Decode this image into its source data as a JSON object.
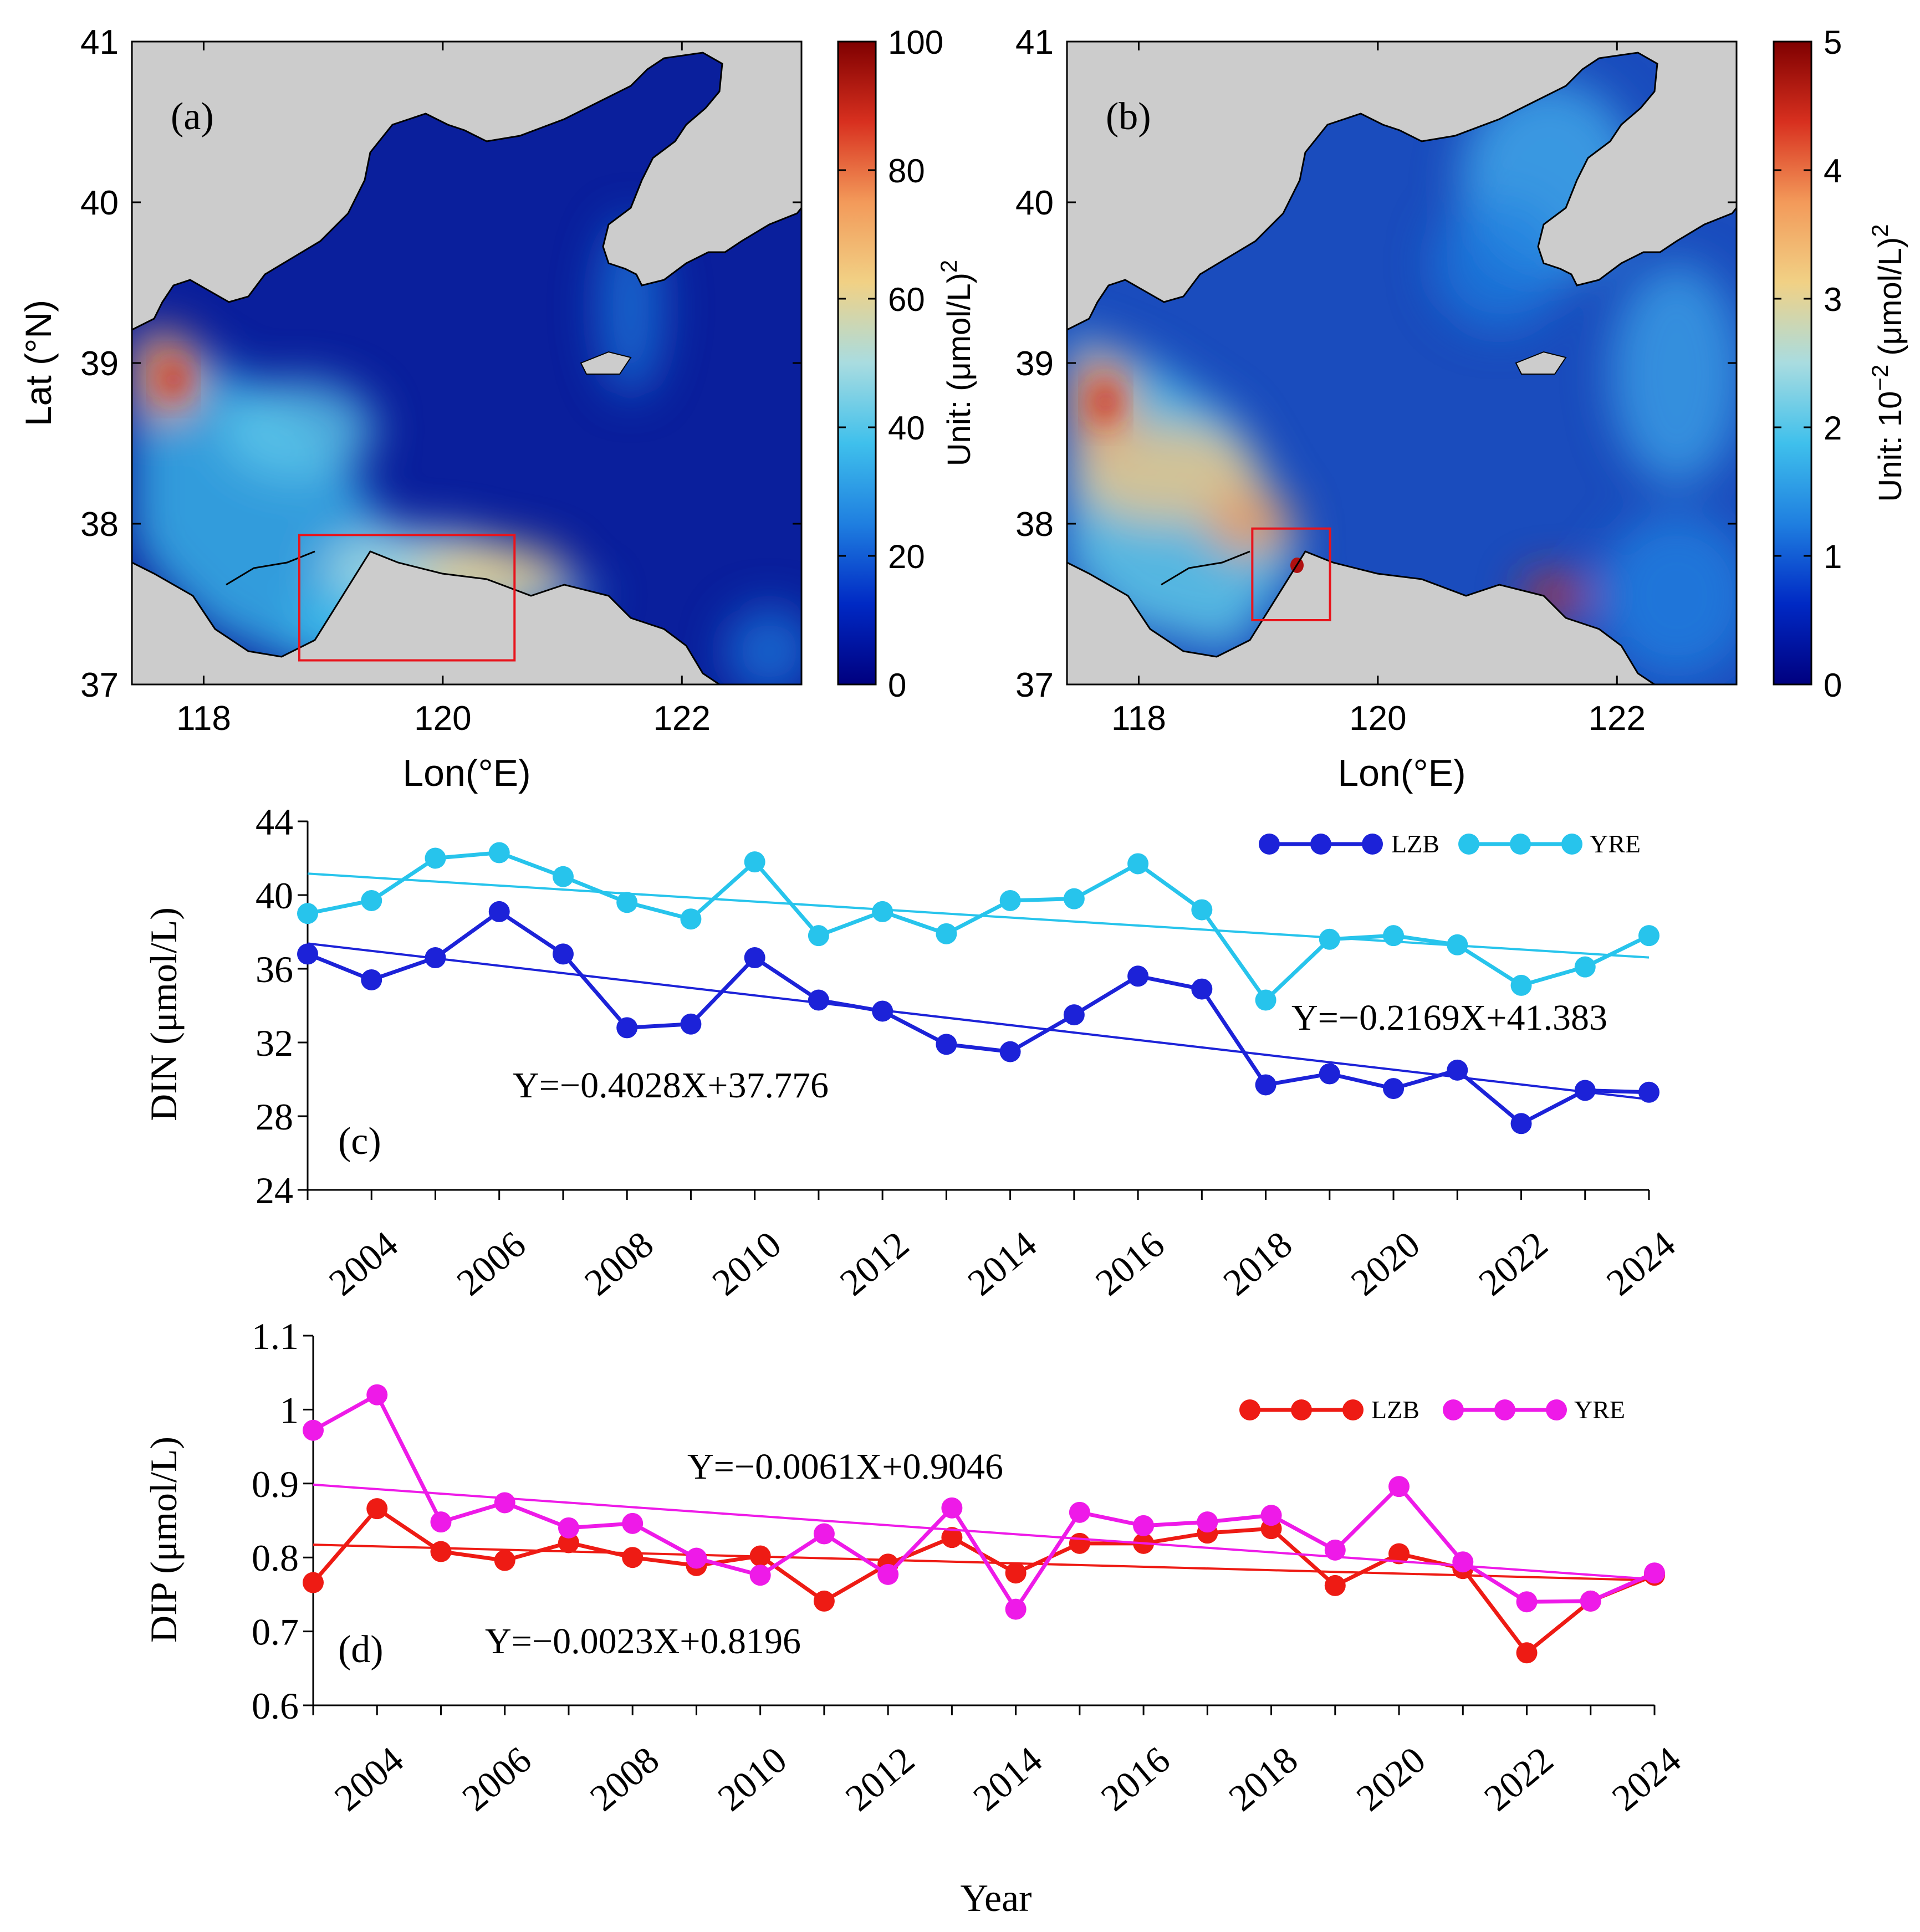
{
  "colors": {
    "land": "#cccccc",
    "sea_deep": "#0a1f9c",
    "frame": "#000000",
    "highlight_box": "#e8141c",
    "din_lzb": "#1c22d8",
    "din_yre": "#27c4ec",
    "dip_lzb": "#ee1b14",
    "dip_yre": "#ee1ae8",
    "colormap": [
      "#00007f",
      "#0029c4",
      "#1f7fe0",
      "#3fc0ec",
      "#a9dce0",
      "#f1d185",
      "#f39a5a",
      "#d8301f",
      "#7f0000"
    ]
  },
  "chart_data": [
    {
      "type": "heatmap",
      "panel_label": "(a)",
      "xlabel": "Lon(°E)",
      "ylabel": "Lat (°N)",
      "xlim": [
        117.4,
        123.0
      ],
      "ylim": [
        37,
        41
      ],
      "x_ticks": [
        "118",
        "120",
        "122"
      ],
      "y_ticks": [
        "37",
        "38",
        "39",
        "40",
        "41"
      ],
      "colorbar": {
        "label_prefix": "Unit: (μmol/L)",
        "label_sup": "2",
        "range": [
          0,
          100
        ],
        "ticks": [
          "0",
          "20",
          "40",
          "60",
          "80",
          "100"
        ]
      },
      "box": {
        "lon": [
          118.8,
          120.6
        ],
        "lat": [
          37.15,
          37.93
        ]
      }
    },
    {
      "type": "heatmap",
      "panel_label": "(b)",
      "xlabel": "Lon(°E)",
      "ylabel": "",
      "xlim": [
        117.4,
        123.0
      ],
      "ylim": [
        37,
        41
      ],
      "x_ticks": [
        "118",
        "120",
        "122"
      ],
      "y_ticks": [
        "37",
        "38",
        "39",
        "40",
        "41"
      ],
      "colorbar": {
        "label_prefix": "Unit: 10",
        "label_exp": "−2",
        "label_unit": " (μmol/L)",
        "label_sup": "2",
        "range": [
          0,
          5
        ],
        "ticks": [
          "0",
          "1",
          "2",
          "3",
          "4",
          "5"
        ]
      },
      "box": {
        "lon": [
          118.95,
          119.6
        ],
        "lat": [
          37.4,
          37.97
        ]
      }
    },
    {
      "type": "line",
      "panel_label": "(c)",
      "ylabel": "DIN (μmol/L)",
      "xlabel": "",
      "x": [
        2003,
        2004,
        2005,
        2006,
        2007,
        2008,
        2009,
        2010,
        2011,
        2012,
        2013,
        2014,
        2015,
        2016,
        2017,
        2018,
        2019,
        2020,
        2021,
        2022,
        2023,
        2024
      ],
      "xlim": [
        2003,
        2024
      ],
      "ylim": [
        24,
        44
      ],
      "y_ticks": [
        24,
        28,
        32,
        36,
        40,
        44
      ],
      "x_tick_labels": [
        "2004",
        "2006",
        "2008",
        "2010",
        "2012",
        "2014",
        "2016",
        "2018",
        "2020",
        "2022",
        "2024"
      ],
      "series": [
        {
          "name": "LZB",
          "values": [
            36.8,
            35.4,
            36.6,
            39.1,
            36.8,
            32.8,
            33.0,
            36.6,
            34.3,
            33.7,
            31.9,
            31.5,
            33.5,
            35.6,
            34.9,
            29.7,
            30.3,
            29.5,
            30.5,
            27.6,
            29.4,
            29.3
          ],
          "trend": {
            "slope": -0.4028,
            "intercept": 37.776
          }
        },
        {
          "name": "YRE",
          "values": [
            39.0,
            39.7,
            42.0,
            42.3,
            41.0,
            39.6,
            38.7,
            41.8,
            37.8,
            39.1,
            37.9,
            39.7,
            39.8,
            41.7,
            39.2,
            34.3,
            37.6,
            37.8,
            37.3,
            35.1,
            36.1,
            37.8
          ],
          "trend": {
            "slope": -0.2169,
            "intercept": 41.383
          }
        }
      ],
      "equations": {
        "lzb": "Y=−0.4028X+37.776",
        "yre": "Y=−0.2169X+41.383"
      },
      "legend": [
        "LZB",
        "YRE"
      ]
    },
    {
      "type": "line",
      "panel_label": "(d)",
      "ylabel": "DIP (μmol/L)",
      "xlabel": "Year",
      "x": [
        2003,
        2004,
        2005,
        2006,
        2007,
        2008,
        2009,
        2010,
        2011,
        2012,
        2013,
        2014,
        2015,
        2016,
        2017,
        2018,
        2019,
        2020,
        2021,
        2022,
        2023,
        2024
      ],
      "xlim": [
        2003,
        2024
      ],
      "ylim": [
        0.6,
        1.1
      ],
      "y_ticks": [
        "0.6",
        "0.7",
        "0.8",
        "0.9",
        "1",
        "1.1"
      ],
      "x_tick_labels": [
        "2004",
        "2006",
        "2008",
        "2010",
        "2012",
        "2014",
        "2016",
        "2018",
        "2020",
        "2022",
        "2024"
      ],
      "series": [
        {
          "name": "LZB",
          "values": [
            0.766,
            0.866,
            0.808,
            0.796,
            0.82,
            0.8,
            0.789,
            0.802,
            0.741,
            0.791,
            0.827,
            0.779,
            0.819,
            0.819,
            0.833,
            0.839,
            0.762,
            0.805,
            0.785,
            0.671,
            0.741,
            0.776
          ],
          "trend": {
            "slope": -0.0023,
            "intercept": 0.8196
          }
        },
        {
          "name": "YRE",
          "values": [
            0.972,
            1.02,
            0.848,
            0.874,
            0.84,
            0.846,
            0.799,
            0.776,
            0.832,
            0.777,
            0.867,
            0.73,
            0.861,
            0.843,
            0.848,
            0.857,
            0.81,
            0.896,
            0.794,
            0.74,
            0.741,
            0.779
          ],
          "trend": {
            "slope": -0.0061,
            "intercept": 0.9046
          }
        }
      ],
      "equations": {
        "lzb": "Y=−0.0023X+0.8196",
        "yre": "Y=−0.0061X+0.9046"
      },
      "legend": [
        "LZB",
        "YRE"
      ]
    }
  ]
}
